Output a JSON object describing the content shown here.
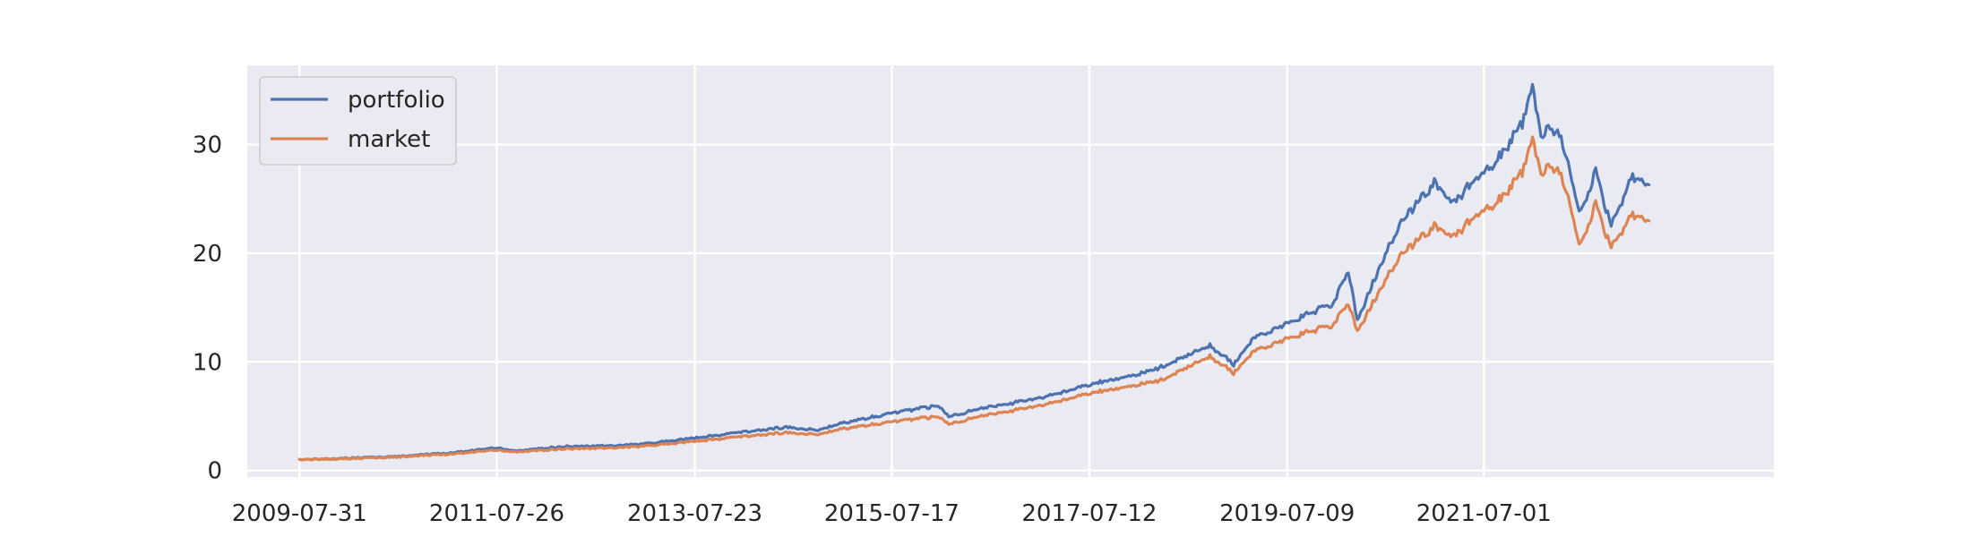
{
  "chart_data": {
    "type": "line",
    "title": "",
    "xlabel": "",
    "ylabel": "",
    "x_tick_labels": [
      "2009-07-31",
      "2011-07-26",
      "2013-07-23",
      "2015-07-17",
      "2017-07-12",
      "2019-07-09",
      "2021-07-01"
    ],
    "x_tick_dates": [
      "2009-07-31",
      "2011-07-26",
      "2013-07-23",
      "2015-07-17",
      "2017-07-12",
      "2019-07-09",
      "2021-07-01"
    ],
    "x_range": [
      "2009-01-20",
      "2024-06-01"
    ],
    "y_ticks": [
      0,
      10,
      20,
      30
    ],
    "y_tick_labels": [
      "0",
      "10",
      "20",
      "30"
    ],
    "ylim": [
      -0.6,
      37.3
    ],
    "grid": true,
    "legend_position": "top-left",
    "series": [
      {
        "name": "portfolio",
        "color": "#4c72b0",
        "points": [
          [
            "2009-07-31",
            1.0
          ],
          [
            "2010-01-29",
            1.15
          ],
          [
            "2010-07-30",
            1.3
          ],
          [
            "2011-01-31",
            1.6
          ],
          [
            "2011-07-26",
            2.1
          ],
          [
            "2011-10-03",
            1.8
          ],
          [
            "2012-04-02",
            2.2
          ],
          [
            "2012-10-01",
            2.3
          ],
          [
            "2013-01-02",
            2.4
          ],
          [
            "2013-07-23",
            3.0
          ],
          [
            "2014-01-02",
            3.5
          ],
          [
            "2014-07-01",
            4.0
          ],
          [
            "2014-10-15",
            3.7
          ],
          [
            "2015-01-02",
            4.3
          ],
          [
            "2015-07-17",
            5.3
          ],
          [
            "2016-01-04",
            6.0
          ],
          [
            "2016-02-11",
            5.0
          ],
          [
            "2016-07-01",
            5.8
          ],
          [
            "2017-01-03",
            6.6
          ],
          [
            "2017-07-12",
            7.9
          ],
          [
            "2018-01-26",
            9.0
          ],
          [
            "2018-04-02",
            9.5
          ],
          [
            "2018-09-28",
            11.5
          ],
          [
            "2018-12-24",
            9.8
          ],
          [
            "2019-03-01",
            12.0
          ],
          [
            "2019-07-09",
            13.6
          ],
          [
            "2019-12-31",
            15.5
          ],
          [
            "2020-02-19",
            18.5
          ],
          [
            "2020-03-23",
            13.8
          ],
          [
            "2020-06-01",
            18.0
          ],
          [
            "2020-09-01",
            23.0
          ],
          [
            "2020-12-31",
            26.5
          ],
          [
            "2021-03-08",
            24.6
          ],
          [
            "2021-07-01",
            27.5
          ],
          [
            "2021-09-02",
            29.0
          ],
          [
            "2021-11-19",
            32.0
          ],
          [
            "2021-12-27",
            35.3
          ],
          [
            "2022-01-27",
            31.0
          ],
          [
            "2022-03-29",
            31.5
          ],
          [
            "2022-05-20",
            27.0
          ],
          [
            "2022-06-16",
            23.5
          ],
          [
            "2022-08-16",
            27.5
          ],
          [
            "2022-10-12",
            22.5
          ],
          [
            "2022-12-30",
            27.0
          ],
          [
            "2023-02-28",
            26.3
          ]
        ]
      },
      {
        "name": "market",
        "color": "#dd8452",
        "points": [
          [
            "2009-07-31",
            1.0
          ],
          [
            "2010-01-29",
            1.1
          ],
          [
            "2010-07-30",
            1.25
          ],
          [
            "2011-01-31",
            1.5
          ],
          [
            "2011-07-26",
            1.9
          ],
          [
            "2011-10-03",
            1.7
          ],
          [
            "2012-04-02",
            2.0
          ],
          [
            "2012-10-01",
            2.1
          ],
          [
            "2013-01-02",
            2.2
          ],
          [
            "2013-07-23",
            2.7
          ],
          [
            "2014-01-02",
            3.1
          ],
          [
            "2014-07-01",
            3.5
          ],
          [
            "2014-10-15",
            3.3
          ],
          [
            "2015-01-02",
            3.8
          ],
          [
            "2015-07-17",
            4.5
          ],
          [
            "2016-01-04",
            5.0
          ],
          [
            "2016-02-11",
            4.3
          ],
          [
            "2016-07-01",
            5.1
          ],
          [
            "2017-01-03",
            5.9
          ],
          [
            "2017-07-12",
            7.1
          ],
          [
            "2018-01-26",
            8.0
          ],
          [
            "2018-04-02",
            8.3
          ],
          [
            "2018-09-28",
            10.5
          ],
          [
            "2018-12-24",
            9.0
          ],
          [
            "2019-03-01",
            10.8
          ],
          [
            "2019-07-09",
            12.2
          ],
          [
            "2019-12-31",
            13.5
          ],
          [
            "2020-02-19",
            15.5
          ],
          [
            "2020-03-23",
            12.8
          ],
          [
            "2020-06-01",
            16.0
          ],
          [
            "2020-09-01",
            20.0
          ],
          [
            "2020-12-31",
            22.5
          ],
          [
            "2021-03-08",
            21.5
          ],
          [
            "2021-07-01",
            24.0
          ],
          [
            "2021-09-02",
            25.0
          ],
          [
            "2021-11-19",
            27.5
          ],
          [
            "2021-12-27",
            30.5
          ],
          [
            "2022-01-27",
            27.5
          ],
          [
            "2022-03-29",
            28.0
          ],
          [
            "2022-05-20",
            24.0
          ],
          [
            "2022-06-16",
            20.5
          ],
          [
            "2022-08-16",
            24.5
          ],
          [
            "2022-10-12",
            20.5
          ],
          [
            "2022-12-30",
            23.5
          ],
          [
            "2023-02-28",
            23.0
          ]
        ]
      }
    ]
  }
}
